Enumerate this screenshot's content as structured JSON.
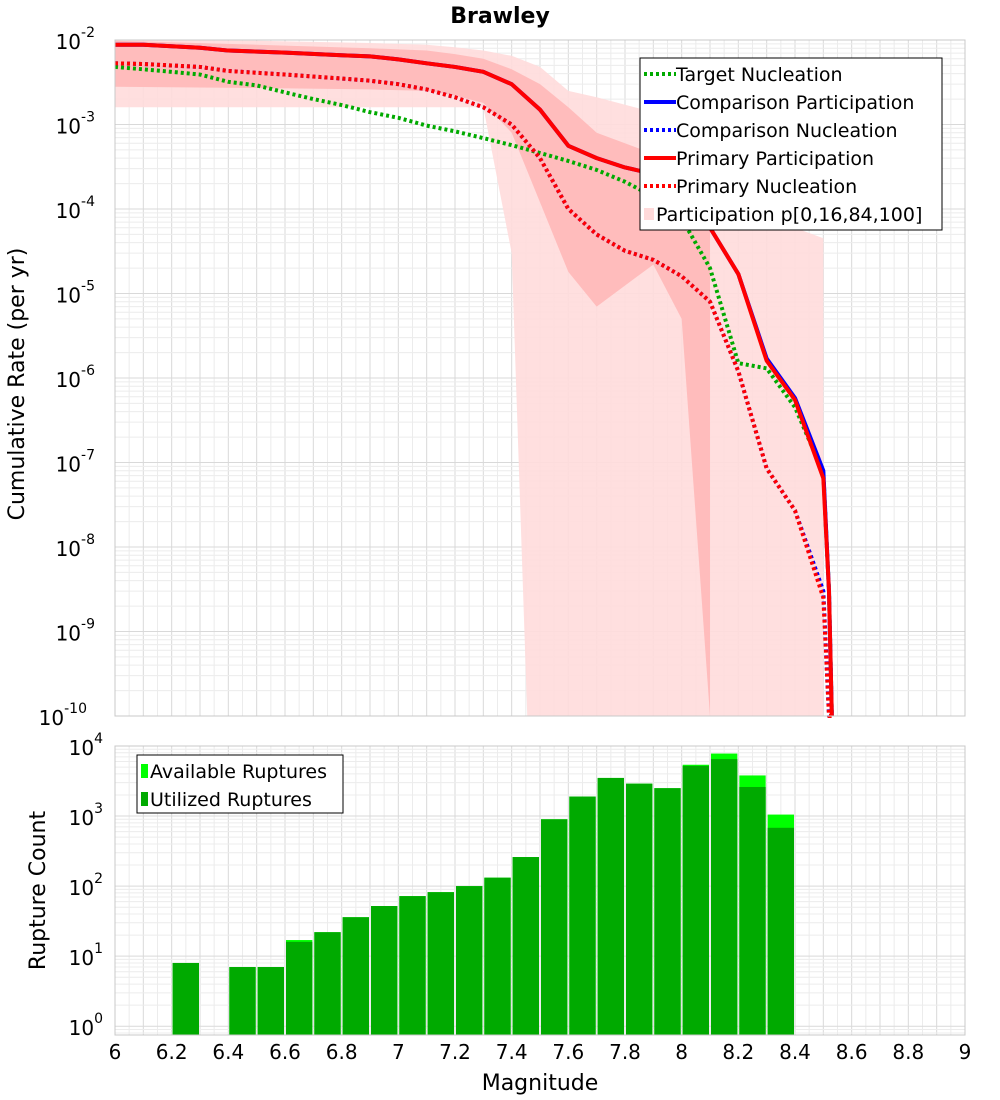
{
  "chart_data": [
    {
      "type": "line",
      "title": "Brawley",
      "xlabel": "",
      "ylabel": "Cumulative Rate (per yr)",
      "yscale": "log",
      "xlim": [
        6,
        9
      ],
      "ylim": [
        1e-10,
        0.01
      ],
      "x_ticks": [
        "6",
        "6.2",
        "6.4",
        "6.6",
        "6.8",
        "7",
        "7.2",
        "7.4",
        "7.6",
        "7.8",
        "8",
        "8.2",
        "8.4",
        "8.6",
        "8.8",
        "9"
      ],
      "y_ticks": [
        {
          "base": "10",
          "exp": "-2",
          "value": 0.01
        },
        {
          "base": "10",
          "exp": "-3",
          "value": 0.001
        },
        {
          "base": "10",
          "exp": "-4",
          "value": 0.0001
        },
        {
          "base": "10",
          "exp": "-5",
          "value": 1e-05
        },
        {
          "base": "10",
          "exp": "-6",
          "value": 1e-06
        },
        {
          "base": "10",
          "exp": "-7",
          "value": 1e-07
        },
        {
          "base": "10",
          "exp": "-8",
          "value": 1e-08
        },
        {
          "base": "10",
          "exp": "-9",
          "value": 1e-09
        },
        {
          "base": "10",
          "exp": "-10",
          "value": 1e-10
        }
      ],
      "legend_position": "top-right",
      "legend": [
        {
          "label": "Target Nucleation",
          "color": "#00aa00",
          "style": "dotted"
        },
        {
          "label": "Comparison Participation",
          "color": "#0000ff",
          "style": "solid"
        },
        {
          "label": " Comparison Nucleation",
          "color": "#0000ff",
          "style": "dotted"
        },
        {
          "label": "Primary Participation",
          "color": "#ff0000",
          "style": "solid"
        },
        {
          "label": " Primary Nucleation",
          "color": "#ff0000",
          "style": "dotted"
        },
        {
          "label": "Participation p[0,16,84,100]",
          "color": "#ffdada",
          "style": "band"
        }
      ],
      "bands": [
        {
          "name": "p0-p100",
          "color": "#ffdcdc",
          "x": [
            6.0,
            6.5,
            6.9,
            7.1,
            7.2,
            7.3,
            7.4,
            7.5,
            7.6,
            7.7,
            7.9,
            8.0,
            8.1,
            8.2,
            8.3,
            8.4,
            8.5
          ],
          "upper": [
            0.01,
            0.0098,
            0.0092,
            0.0088,
            0.0082,
            0.0075,
            0.0065,
            0.0048,
            0.0025,
            0.0021,
            0.0014,
            0.00085,
            0.0005,
            0.0002,
            0.0001,
            6e-05,
            4.5e-05
          ],
          "lower": [
            0.0016,
            0.0016,
            0.0016,
            0.0016,
            0.0016,
            0.0016,
            3e-05,
            1e-10,
            1e-10,
            1e-10,
            1e-10,
            1e-10,
            1e-10,
            1e-10,
            1e-10,
            1e-10,
            1e-10
          ],
          "lower_edge_x": 7.455
        },
        {
          "name": "p16-p84",
          "color": "#ffb8b8",
          "x": [
            6.0,
            6.5,
            6.9,
            7.1,
            7.2,
            7.3,
            7.4,
            7.5,
            7.6,
            7.7,
            7.9,
            8.0,
            8.1
          ],
          "upper": [
            0.0098,
            0.0088,
            0.008,
            0.0075,
            0.0068,
            0.006,
            0.0045,
            0.003,
            0.0016,
            0.0008,
            0.00045,
            0.00035,
            0.0002
          ],
          "lower": [
            0.0028,
            0.0027,
            0.0026,
            0.0025,
            0.0022,
            0.0018,
            0.0008,
            0.00012,
            1.8e-05,
            7e-06,
            2.2e-05,
            5e-06,
            1e-10
          ]
        }
      ],
      "series": [
        {
          "name": "Target Nucleation",
          "color": "#00aa00",
          "style": "dotted",
          "x": [
            6.0,
            6.1,
            6.2,
            6.3,
            6.4,
            6.5,
            6.6,
            6.7,
            6.8,
            6.9,
            7.0,
            7.1,
            7.2,
            7.3,
            7.4,
            7.5,
            7.6,
            7.7,
            7.8,
            7.9,
            8.0,
            8.1,
            8.2,
            8.3,
            8.4,
            8.5,
            8.52,
            8.53
          ],
          "y": [
            0.0048,
            0.0045,
            0.0042,
            0.0039,
            0.0032,
            0.0029,
            0.0024,
            0.002,
            0.0017,
            0.0014,
            0.0012,
            0.00097,
            0.00083,
            0.00069,
            0.00057,
            0.00046,
            0.00037,
            0.00029,
            0.00021,
            0.00014,
            7.7e-05,
            2e-05,
            1.5e-06,
            1.3e-06,
            4.5e-07,
            7.5e-08,
            3e-09,
            1e-10
          ]
        },
        {
          "name": "Comparison Participation",
          "color": "#0000ff",
          "style": "solid",
          "x": [
            6.0,
            6.1,
            6.3,
            6.4,
            6.6,
            6.8,
            6.9,
            7.0,
            7.1,
            7.2,
            7.3,
            7.4,
            7.5,
            7.6,
            7.7,
            7.8,
            7.9,
            8.0,
            8.1,
            8.2,
            8.3,
            8.4,
            8.5,
            8.52,
            8.53
          ],
          "y": [
            0.0088,
            0.0088,
            0.0081,
            0.0075,
            0.0071,
            0.0066,
            0.0064,
            0.0059,
            0.0053,
            0.0048,
            0.0042,
            0.003,
            0.0015,
            0.00056,
            0.0004,
            0.00031,
            0.00026,
            0.00014,
            6e-05,
            1.7e-05,
            1.7e-06,
            5.8e-07,
            8e-08,
            3e-09,
            1e-10
          ]
        },
        {
          "name": "Comparison Nucleation",
          "color": "#0000ff",
          "style": "dotted",
          "x": [
            6.0,
            6.1,
            6.3,
            6.4,
            6.6,
            6.8,
            6.9,
            7.0,
            7.1,
            7.2,
            7.3,
            7.4,
            7.5,
            7.6,
            7.7,
            7.8,
            7.9,
            8.0,
            8.1,
            8.2,
            8.3,
            8.4,
            8.5,
            8.52,
            8.53
          ],
          "y": [
            0.0053,
            0.0052,
            0.0048,
            0.0043,
            0.0039,
            0.0035,
            0.0033,
            0.003,
            0.0026,
            0.0021,
            0.0016,
            0.001,
            0.0004,
            0.0001,
            5e-05,
            3.2e-05,
            2.5e-05,
            1.6e-05,
            8e-06,
            1.2e-06,
            8.5e-08,
            2.7e-08,
            3e-09,
            1e-10,
            1e-10
          ]
        },
        {
          "name": "Primary Participation",
          "color": "#ff0000",
          "style": "solid",
          "x": [
            6.0,
            6.1,
            6.3,
            6.4,
            6.6,
            6.8,
            6.9,
            7.0,
            7.1,
            7.2,
            7.3,
            7.4,
            7.5,
            7.6,
            7.7,
            7.8,
            7.9,
            8.0,
            8.1,
            8.2,
            8.3,
            8.4,
            8.5,
            8.52,
            8.53
          ],
          "y": [
            0.0088,
            0.0088,
            0.0081,
            0.0075,
            0.0071,
            0.0066,
            0.0064,
            0.0059,
            0.0053,
            0.0048,
            0.0042,
            0.003,
            0.0015,
            0.00056,
            0.0004,
            0.00031,
            0.00026,
            0.00014,
            6e-05,
            1.7e-05,
            1.6e-06,
            5.5e-07,
            6.5e-08,
            3e-09,
            1e-10
          ]
        },
        {
          "name": "Primary Nucleation",
          "color": "#ff0000",
          "style": "dotted",
          "x": [
            6.0,
            6.1,
            6.3,
            6.4,
            6.6,
            6.8,
            6.9,
            7.0,
            7.1,
            7.2,
            7.3,
            7.4,
            7.5,
            7.6,
            7.7,
            7.8,
            7.9,
            8.0,
            8.1,
            8.2,
            8.3,
            8.4,
            8.5,
            8.52,
            8.53
          ],
          "y": [
            0.0053,
            0.0052,
            0.0048,
            0.0043,
            0.0039,
            0.0035,
            0.0033,
            0.003,
            0.0026,
            0.0021,
            0.0016,
            0.001,
            0.0004,
            0.0001,
            5e-05,
            3.2e-05,
            2.5e-05,
            1.6e-05,
            8e-06,
            1.2e-06,
            8.5e-08,
            2.7e-08,
            2.5e-09,
            1e-10,
            1e-10
          ]
        }
      ]
    },
    {
      "type": "bar",
      "title": "",
      "xlabel": "Magnitude",
      "ylabel": "Rupture Count",
      "yscale": "log",
      "xlim": [
        6,
        9
      ],
      "ylim": [
        0.75,
        10000
      ],
      "x_ticks": [
        "6",
        "6.2",
        "6.4",
        "6.6",
        "6.8",
        "7",
        "7.2",
        "7.4",
        "7.6",
        "7.8",
        "8",
        "8.2",
        "8.4",
        "8.6",
        "8.8",
        "9"
      ],
      "y_ticks": [
        {
          "base": "10",
          "exp": "0",
          "value": 1
        },
        {
          "base": "10",
          "exp": "1",
          "value": 10
        },
        {
          "base": "10",
          "exp": "2",
          "value": 100
        },
        {
          "base": "10",
          "exp": "3",
          "value": 1000
        },
        {
          "base": "10",
          "exp": "4",
          "value": 10000
        }
      ],
      "bin_width": 0.1,
      "legend_position": "top-left",
      "legend": [
        {
          "label": "Available Ruptures",
          "color": "#00ff00"
        },
        {
          "label": "Utilized Ruptures",
          "color": "#00aa00"
        }
      ],
      "bin_centers": [
        6.05,
        6.15,
        6.25,
        6.35,
        6.45,
        6.55,
        6.65,
        6.75,
        6.85,
        6.95,
        7.05,
        7.15,
        7.25,
        7.35,
        7.45,
        7.55,
        7.65,
        7.75,
        7.85,
        7.95,
        8.05,
        8.15,
        8.25,
        8.35
      ],
      "series": [
        {
          "name": "Available Ruptures",
          "color": "#00ff00",
          "values": [
            0,
            0,
            8,
            0,
            7,
            7,
            17,
            22,
            36,
            52,
            72,
            82,
            100,
            132,
            260,
            900,
            1900,
            3500,
            2900,
            2500,
            5400,
            7800,
            3800,
            1050
          ]
        },
        {
          "name": "Utilized Ruptures",
          "color": "#00aa00",
          "values": [
            0,
            0,
            8,
            0,
            7,
            7,
            16,
            22,
            36,
            52,
            72,
            82,
            100,
            132,
            260,
            900,
            1900,
            3500,
            2900,
            2500,
            5200,
            6500,
            2600,
            680
          ]
        }
      ]
    }
  ]
}
